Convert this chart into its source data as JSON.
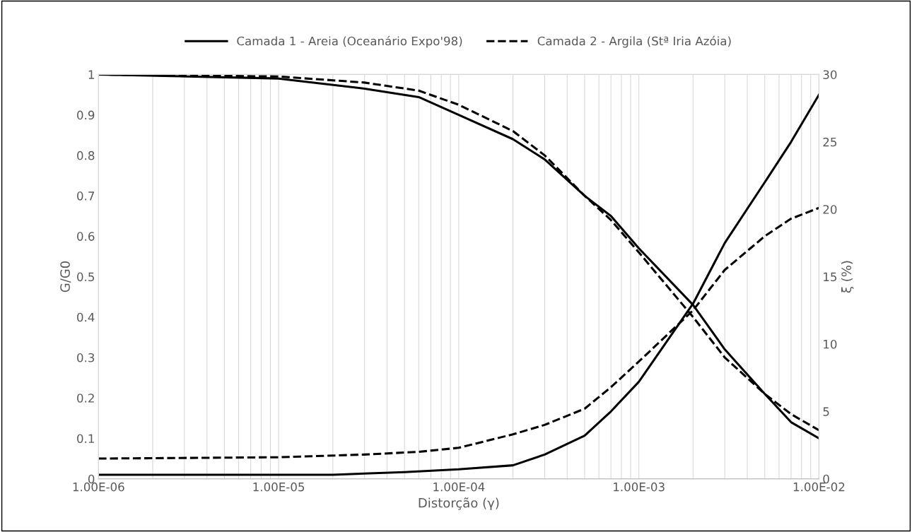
{
  "chart_data": {
    "type": "line",
    "xlabel": "Distorção (γ)",
    "ylabel": "G/G0",
    "y2label": "ξ (%)",
    "log": "x",
    "grid": "x",
    "legend": "top",
    "marker": "none",
    "xlim": [
      1e-06,
      0.01
    ],
    "xticks": [
      {
        "value": 1e-06,
        "label": "1.00E-06"
      },
      {
        "value": 1e-05,
        "label": "1.00E-05"
      },
      {
        "value": 0.0001,
        "label": "1.00E-04"
      },
      {
        "value": 0.001,
        "label": "1.00E-03"
      },
      {
        "value": 0.01,
        "label": "1.00E-02"
      }
    ],
    "ylim": [
      0,
      1
    ],
    "yticks": [
      0,
      0.1,
      0.2,
      0.3,
      0.4,
      0.5,
      0.6,
      0.7,
      0.8,
      0.9,
      1
    ],
    "y2lim": [
      0,
      30
    ],
    "y2ticks": [
      0,
      5,
      10,
      15,
      20,
      25,
      30
    ],
    "x": [
      1e-06,
      1e-05,
      3e-05,
      6e-05,
      0.0001,
      0.0002,
      0.0003,
      0.0005,
      0.0007,
      0.001,
      0.002,
      0.003,
      0.005,
      0.007,
      0.01
    ],
    "series": [
      {
        "name": "Camada 1 - Areia (Oceanário Expo'98)",
        "color": "#000000",
        "line_style": "solid",
        "values": [
          1,
          0.99,
          0.965,
          0.944,
          0.9,
          0.84,
          0.79,
          0.7,
          0.65,
          0.57,
          0.43,
          0.32,
          0.21,
          0.14,
          0.1
        ]
      },
      {
        "name": "Camada 2 - Argila (Stª Iria Azóia)",
        "color": "#000000",
        "line_style": "dashed",
        "values": [
          1,
          0.995,
          0.98,
          0.96,
          0.925,
          0.86,
          0.8,
          0.7,
          0.64,
          0.56,
          0.4,
          0.3,
          0.21,
          0.16,
          0.12
        ]
      },
      {
        "color": "#000000",
        "line_style": "solid",
        "axis": "y2",
        "x": [
          1e-06,
          1e-05,
          2e-05,
          5e-05,
          0.0001,
          0.0002,
          0.0003,
          0.0005,
          0.0007,
          0.001,
          0.002,
          0.003,
          0.005,
          0.007,
          0.01
        ],
        "values": [
          0.3,
          0.3,
          0.3,
          0.5,
          0.7,
          1.0,
          1.8,
          3.2,
          5.0,
          7.2,
          13.0,
          17.5,
          22.0,
          25.0,
          28.5
        ]
      },
      {
        "color": "#000000",
        "line_style": "dashed",
        "axis": "y2",
        "values": [
          1.5,
          1.6,
          1.8,
          2.0,
          2.3,
          3.3,
          4.0,
          5.2,
          6.8,
          8.7,
          12.5,
          15.5,
          18.0,
          19.3,
          20.1
        ]
      }
    ]
  }
}
